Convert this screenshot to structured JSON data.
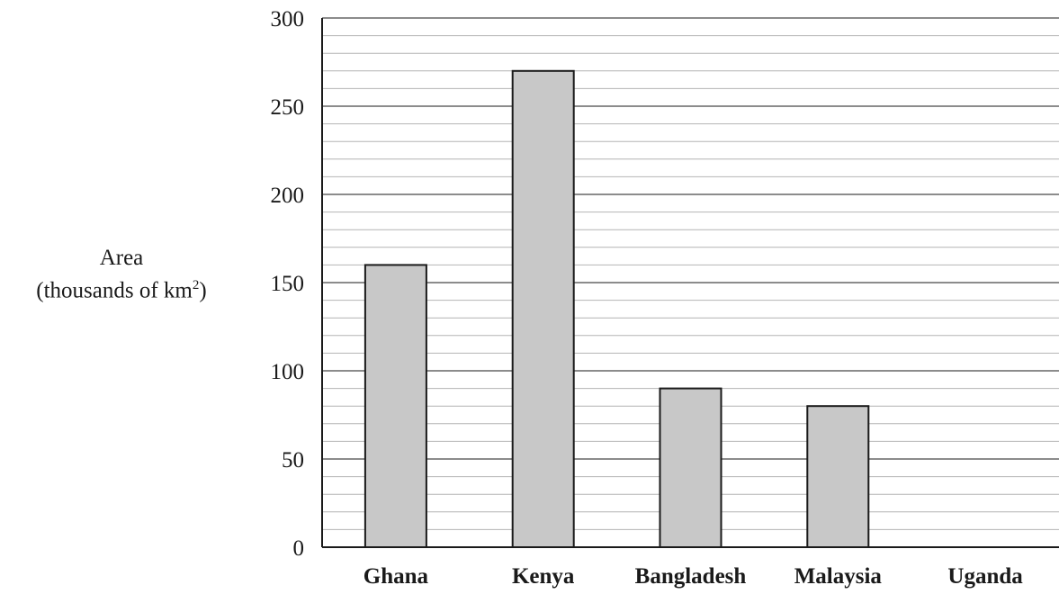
{
  "chart_data": {
    "type": "bar",
    "categories": [
      "Ghana",
      "Kenya",
      "Bangladesh",
      "Malaysia",
      "Uganda"
    ],
    "values": [
      160,
      270,
      90,
      80,
      null
    ],
    "title": "",
    "xlabel": "",
    "ylabel_line1": "Area",
    "ylabel_line2_prefix": "(thousands of km",
    "ylabel_line2_sup": "2",
    "ylabel_line2_suffix": ")",
    "ylim": [
      0,
      300
    ],
    "major_ticks": [
      0,
      50,
      100,
      150,
      200,
      250,
      300
    ],
    "minor_step": 10,
    "grid": true,
    "colors": {
      "bar_fill": "#c8c8c8",
      "bar_stroke": "#1a1a1a",
      "major_grid": "#8c8c8c",
      "minor_grid": "#b4b4b4",
      "axis": "#1a1a1a"
    }
  }
}
